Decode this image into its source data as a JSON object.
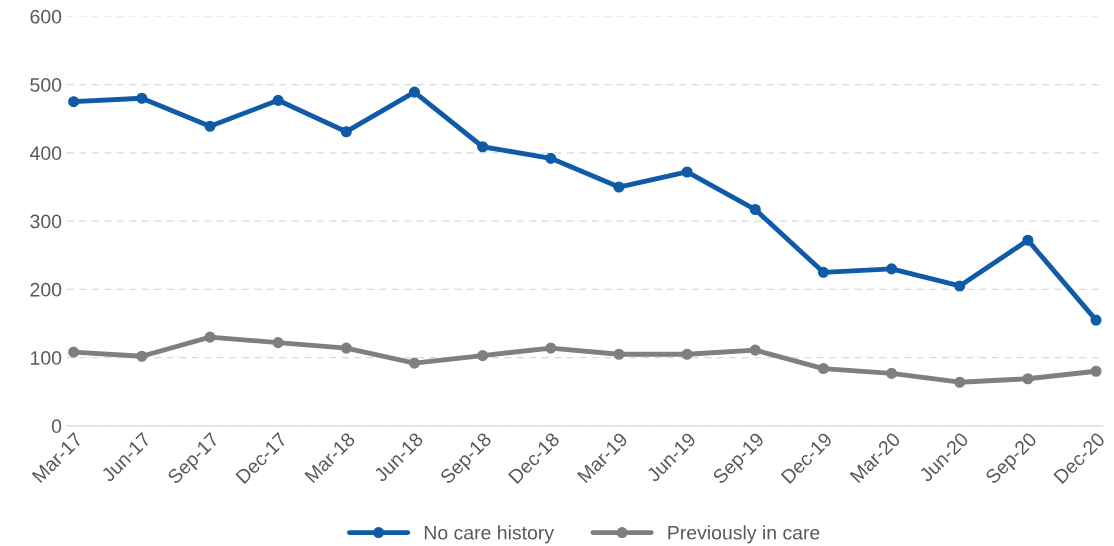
{
  "chart_data": {
    "type": "line",
    "categories": [
      "Mar-17",
      "Jun-17",
      "Sep-17",
      "Dec-17",
      "Mar-18",
      "Jun-18",
      "Sep-18",
      "Dec-18",
      "Mar-19",
      "Jun-19",
      "Sep-19",
      "Dec-19",
      "Mar-20",
      "Jun-20",
      "Sep-20",
      "Dec-20"
    ],
    "series": [
      {
        "name": "No care history",
        "color": "#0f5ba7",
        "values": [
          475,
          480,
          439,
          477,
          431,
          489,
          409,
          392,
          350,
          372,
          317,
          225,
          230,
          205,
          272,
          155
        ]
      },
      {
        "name": "Previously in care",
        "color": "#7f7f7f",
        "values": [
          108,
          102,
          130,
          122,
          114,
          92,
          103,
          114,
          105,
          105,
          111,
          84,
          77,
          64,
          69,
          80
        ]
      }
    ],
    "ylim": [
      0,
      600
    ],
    "yticks": [
      0,
      100,
      200,
      300,
      400,
      500,
      600
    ],
    "grid": "y",
    "legend": "bottom",
    "marker": "circle",
    "line_style": "solid"
  }
}
